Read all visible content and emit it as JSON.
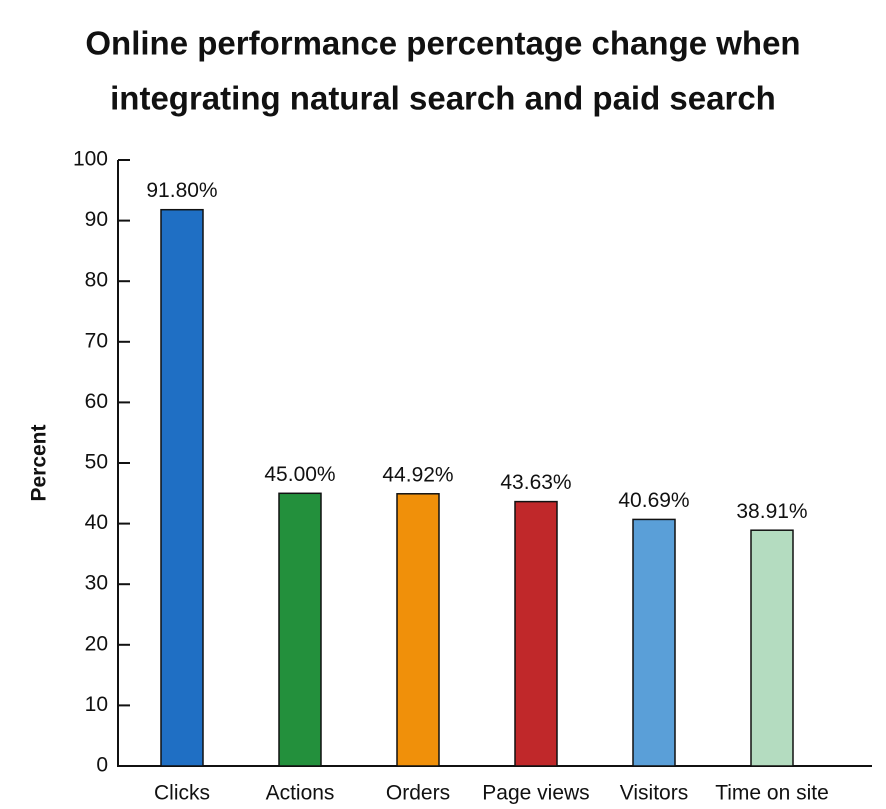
{
  "chart_data": {
    "type": "bar",
    "title": [
      "Online performance percentage change when",
      "integrating natural search and paid search"
    ],
    "y_label": "Percent",
    "categories": [
      "Clicks",
      "Actions",
      "Orders",
      "Page views",
      "Visitors",
      "Time on site"
    ],
    "values": [
      91.8,
      45,
      44.92,
      43.63,
      40.69,
      38.91
    ],
    "value_labels": [
      "91.80%",
      "45.00%",
      "44.92%",
      "43.63%",
      "40.69%",
      "38.91%"
    ],
    "colors": [
      "#1f6fc4",
      "#23903c",
      "#f0900a",
      "#c0282a",
      "#5a9fd8",
      "#b4dcc0"
    ],
    "ylim": [
      0,
      100
    ],
    "yticks": [
      0,
      10,
      20,
      30,
      40,
      50,
      60,
      70,
      80,
      90,
      100
    ],
    "grid": false
  }
}
